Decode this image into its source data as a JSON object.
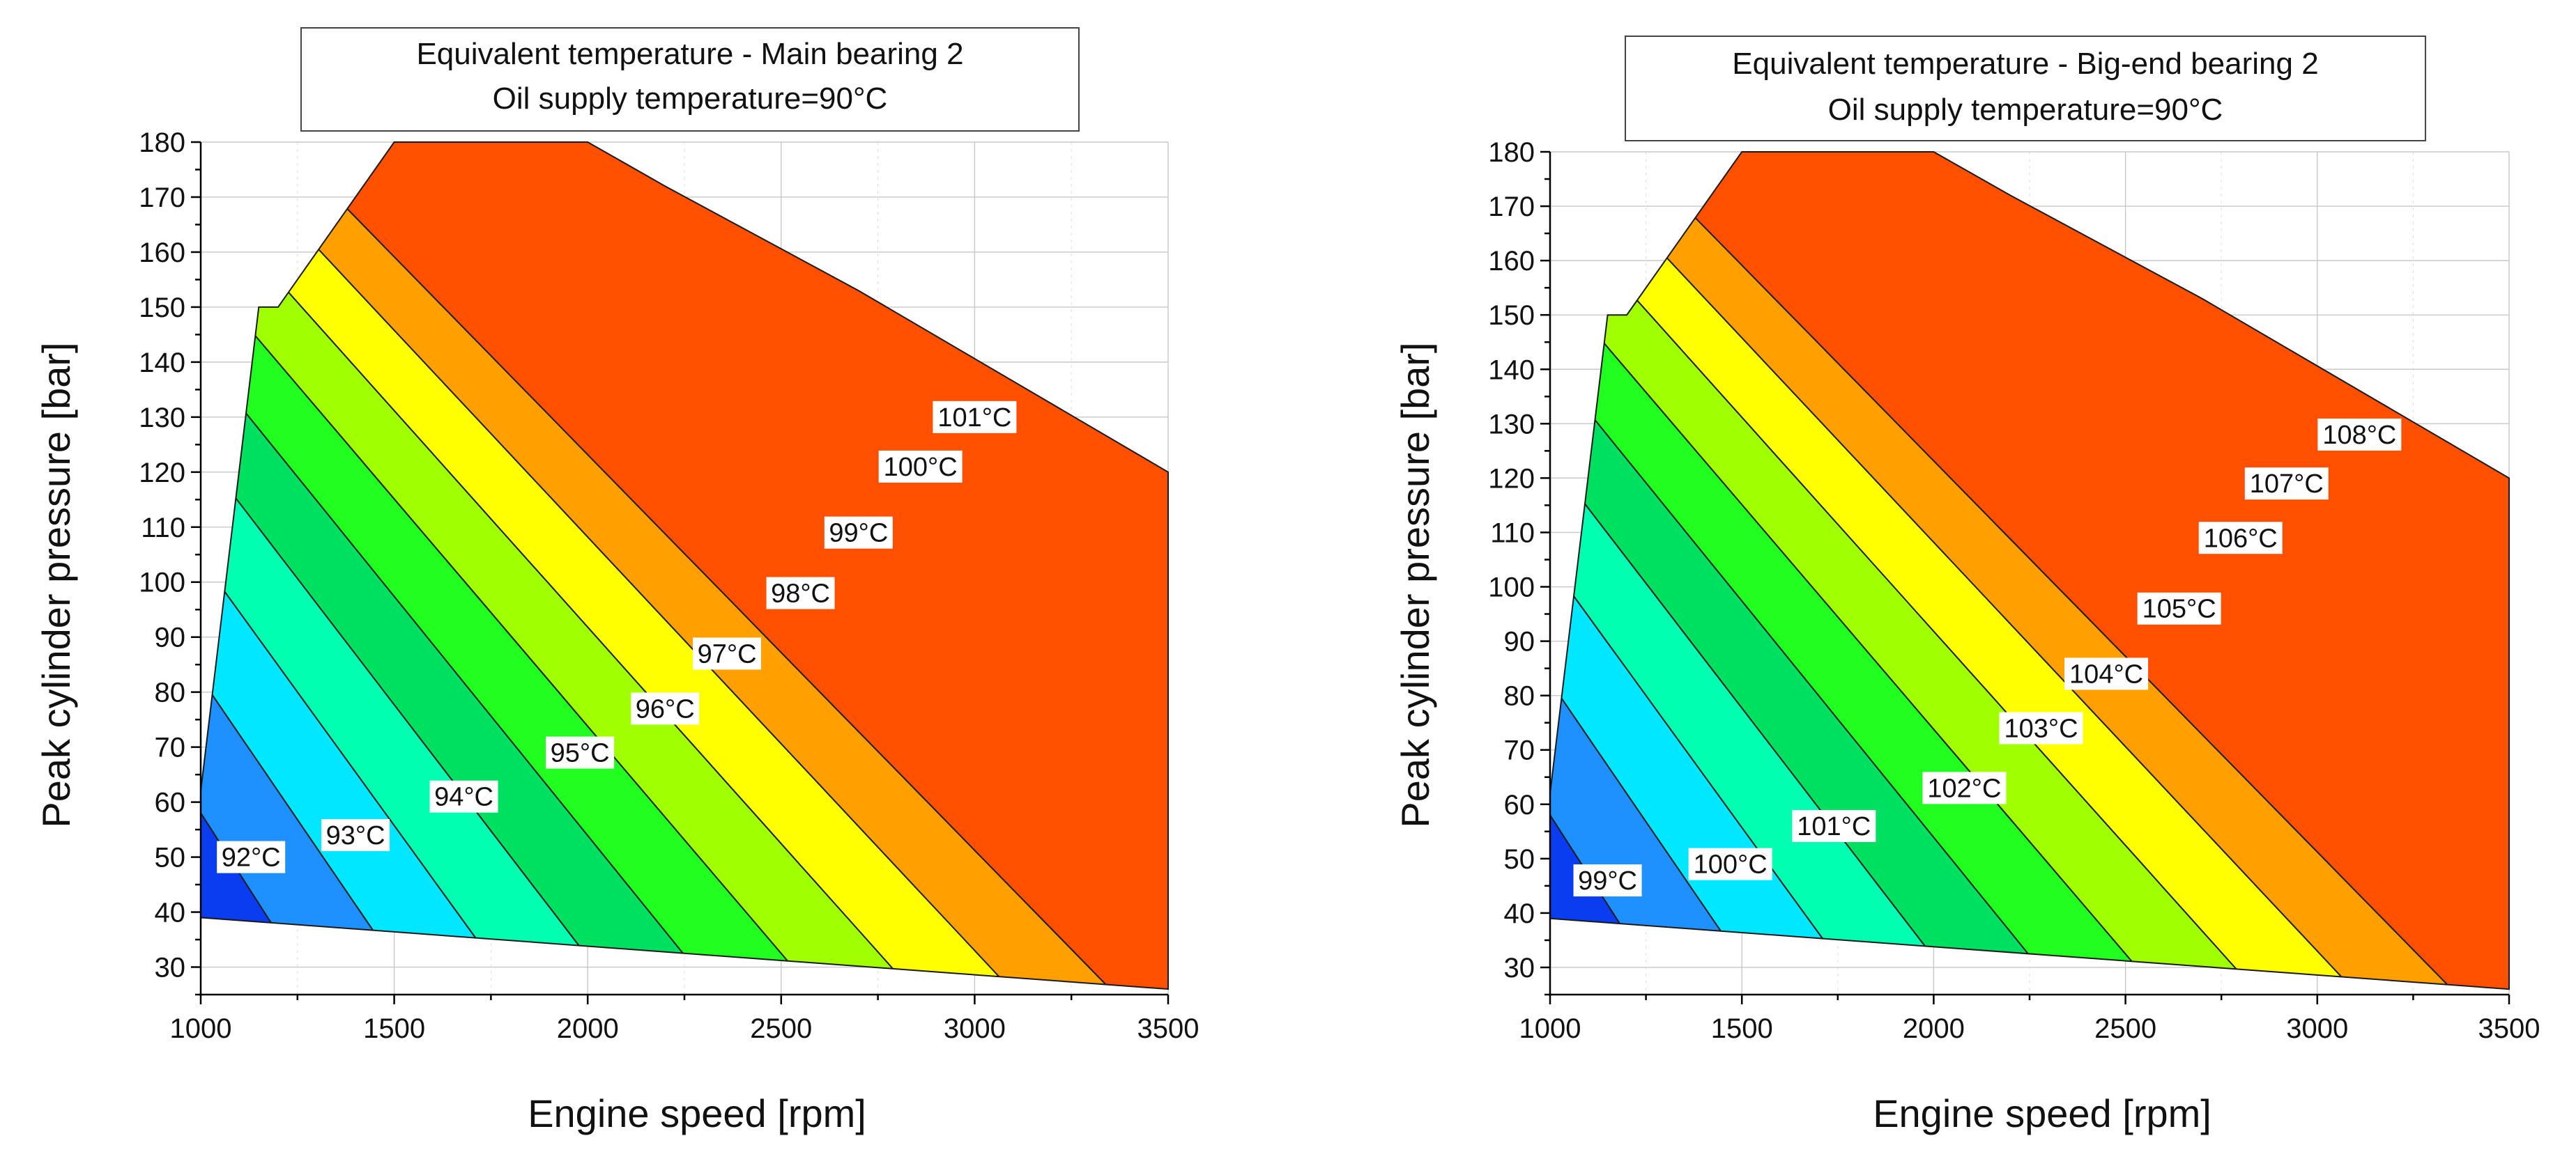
{
  "chart_data": [
    {
      "type": "contour",
      "title_line1": "Equivalent temperature - Main bearing 2",
      "title_line2": "Oil supply temperature=90°C",
      "xlabel": "Engine speed [rpm]",
      "ylabel": "Peak cylinder pressure [bar]",
      "xlim": [
        1000,
        3500
      ],
      "ylim": [
        25,
        180
      ],
      "x_ticks": [
        "1000",
        "1500",
        "2000",
        "2500",
        "3000",
        "3500"
      ],
      "y_ticks": [
        "30",
        "40",
        "50",
        "60",
        "70",
        "80",
        "90",
        "100",
        "110",
        "120",
        "130",
        "140",
        "150",
        "160",
        "170",
        "180"
      ],
      "domain_boundary": [
        [
          1000,
          39
        ],
        [
          1000,
          62
        ],
        [
          1150,
          150
        ],
        [
          1200,
          150
        ],
        [
          1500,
          180
        ],
        [
          2000,
          180
        ],
        [
          2200,
          172
        ],
        [
          2700,
          153
        ],
        [
          3500,
          120
        ],
        [
          3500,
          26
        ],
        [
          1000,
          39
        ]
      ],
      "levels": [
        {
          "label": "92°C",
          "color": "#0a3cf0",
          "label_x": 1130,
          "label_y": 50
        },
        {
          "label": "93°C",
          "color": "#1e90ff",
          "label_x": 1400,
          "label_y": 54
        },
        {
          "label": "94°C",
          "color": "#00e8ff",
          "label_x": 1680,
          "label_y": 61
        },
        {
          "label": "95°C",
          "color": "#00ffb0",
          "label_x": 1980,
          "label_y": 69
        },
        {
          "label": "96°C",
          "color": "#00e060",
          "label_x": 2200,
          "label_y": 77
        },
        {
          "label": "97°C",
          "color": "#20ff20",
          "label_x": 2360,
          "label_y": 87
        },
        {
          "label": "98°C",
          "color": "#a0ff00",
          "label_x": 2550,
          "label_y": 98
        },
        {
          "label": "99°C",
          "color": "#ffff00",
          "label_x": 2700,
          "label_y": 109
        },
        {
          "label": "100°C",
          "color": "#ffa000",
          "label_x": 2860,
          "label_y": 121
        },
        {
          "label": "101°C",
          "color": "#ff5000",
          "label_x": 3000,
          "label_y": 130
        }
      ]
    },
    {
      "type": "contour",
      "title_line1": "Equivalent temperature - Big-end bearing 2",
      "title_line2": "Oil supply temperature=90°C",
      "xlabel": "Engine speed [rpm]",
      "ylabel": "Peak cylinder pressure [bar]",
      "xlim": [
        1000,
        3500
      ],
      "ylim": [
        25,
        180
      ],
      "x_ticks": [
        "1000",
        "1500",
        "2000",
        "2500",
        "3000",
        "3500"
      ],
      "y_ticks": [
        "30",
        "40",
        "50",
        "60",
        "70",
        "80",
        "90",
        "100",
        "110",
        "120",
        "130",
        "140",
        "150",
        "160",
        "170",
        "180"
      ],
      "domain_boundary": [
        [
          1000,
          39
        ],
        [
          1000,
          62
        ],
        [
          1150,
          150
        ],
        [
          1200,
          150
        ],
        [
          1500,
          180
        ],
        [
          2000,
          180
        ],
        [
          2200,
          172
        ],
        [
          2700,
          153
        ],
        [
          3500,
          120
        ],
        [
          3500,
          26
        ],
        [
          1000,
          39
        ]
      ],
      "levels": [
        {
          "label": "99°C",
          "color": "#0a3cf0",
          "label_x": 1150,
          "label_y": 46
        },
        {
          "label": "100°C",
          "color": "#1e90ff",
          "label_x": 1470,
          "label_y": 49
        },
        {
          "label": "101°C",
          "color": "#00e8ff",
          "label_x": 1740,
          "label_y": 56
        },
        {
          "label": "102°C",
          "color": "#00ffb0",
          "label_x": 2080,
          "label_y": 63
        },
        {
          "label": "103°C",
          "color": "#00e060",
          "label_x": 2280,
          "label_y": 74
        },
        {
          "label": "104°C",
          "color": "#20ff20",
          "label_x": 2450,
          "label_y": 84
        },
        {
          "label": "105°C",
          "color": "#a0ff00",
          "label_x": 2640,
          "label_y": 96
        },
        {
          "label": "106°C",
          "color": "#ffff00",
          "label_x": 2800,
          "label_y": 109
        },
        {
          "label": "107°C",
          "color": "#ffa000",
          "label_x": 2920,
          "label_y": 119
        },
        {
          "label": "108°C",
          "color": "#ff5000",
          "label_x": 3110,
          "label_y": 128
        }
      ]
    }
  ]
}
